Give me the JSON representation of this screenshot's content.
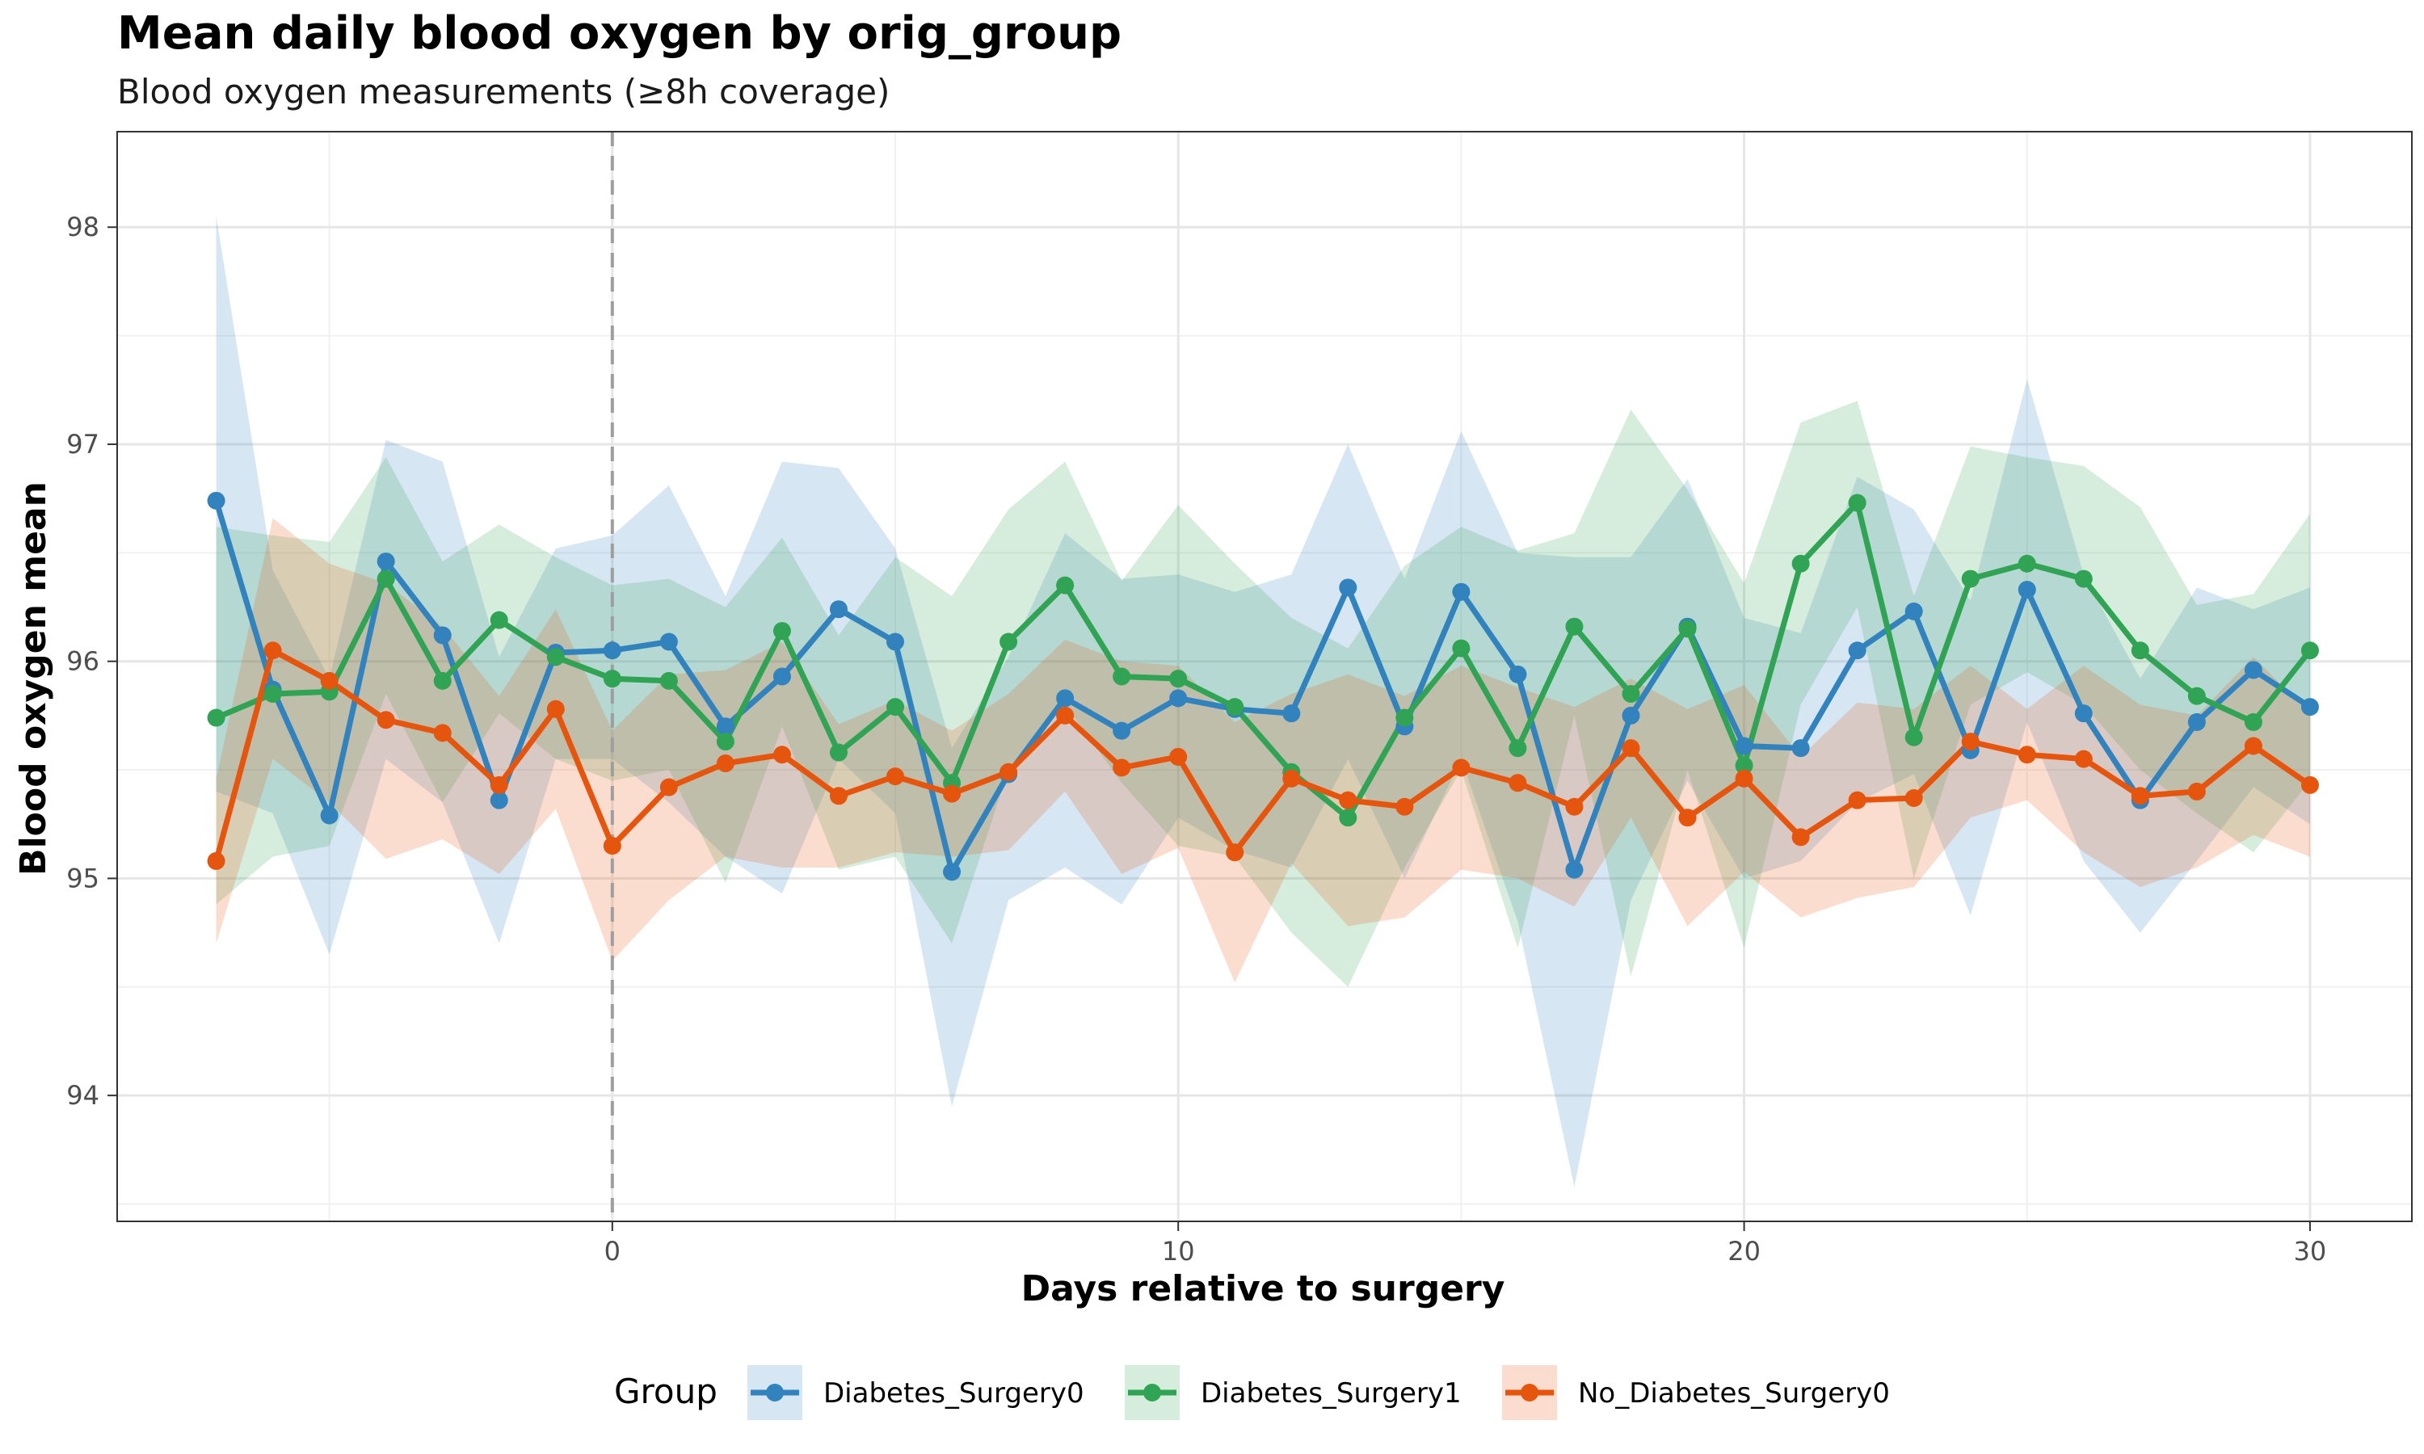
{
  "chart_data": {
    "type": "line",
    "title": "Mean daily blood oxygen by orig_group",
    "subtitle": "Blood oxygen measurements (≥8h coverage)",
    "xlabel": "Days relative to surgery",
    "ylabel": "Blood oxygen mean",
    "x_ticks": [
      0,
      10,
      20,
      30
    ],
    "y_ticks": [
      94,
      95,
      96,
      97,
      98
    ],
    "xlim": [
      -8.75,
      31.8
    ],
    "ylim": [
      93.42,
      98.44
    ],
    "grid": true,
    "reference_line_x": 0,
    "legend_title": "Group",
    "legend_position": "bottom",
    "x": [
      -7,
      -6,
      -5,
      -4,
      -3,
      -2,
      -1,
      0,
      1,
      2,
      3,
      4,
      5,
      6,
      7,
      8,
      9,
      10,
      11,
      12,
      13,
      14,
      15,
      16,
      17,
      18,
      19,
      20,
      21,
      22,
      23,
      24,
      25,
      26,
      27,
      28,
      29,
      30
    ],
    "series": [
      {
        "name": "Diabetes_Surgery0",
        "color": "#3182bd",
        "values": [
          96.74,
          95.87,
          95.29,
          96.46,
          96.12,
          95.36,
          96.04,
          96.05,
          96.09,
          95.7,
          95.93,
          96.24,
          96.09,
          95.03,
          95.48,
          95.83,
          95.68,
          95.83,
          95.78,
          95.76,
          96.34,
          95.7,
          96.32,
          95.94,
          95.04,
          95.75,
          96.16,
          95.61,
          95.6,
          96.05,
          96.23,
          95.59,
          96.33,
          95.76,
          95.36,
          95.72,
          95.96,
          95.79
        ],
        "lower": [
          95.4,
          95.3,
          94.65,
          95.55,
          95.35,
          94.7,
          95.55,
          95.55,
          95.35,
          95.1,
          94.93,
          95.55,
          95.3,
          93.95,
          94.9,
          95.05,
          94.88,
          95.28,
          95.13,
          95.05,
          95.55,
          95.0,
          95.55,
          94.8,
          93.58,
          94.9,
          95.45,
          95.0,
          95.08,
          95.35,
          95.48,
          94.83,
          95.72,
          95.08,
          94.75,
          95.08,
          95.42,
          95.25
        ],
        "upper": [
          98.05,
          96.42,
          95.92,
          97.02,
          96.92,
          96.02,
          96.52,
          96.58,
          96.81,
          96.3,
          96.92,
          96.89,
          96.52,
          95.6,
          96.02,
          96.59,
          96.38,
          96.4,
          96.32,
          96.4,
          97.0,
          96.38,
          97.06,
          96.5,
          96.48,
          96.48,
          96.84,
          96.2,
          96.13,
          96.85,
          96.7,
          96.28,
          97.3,
          96.4,
          95.92,
          96.34,
          96.24,
          96.34
        ]
      },
      {
        "name": "Diabetes_Surgery1",
        "color": "#31a354",
        "values": [
          95.74,
          95.85,
          95.86,
          96.38,
          95.91,
          96.19,
          96.02,
          95.92,
          95.91,
          95.63,
          96.14,
          95.58,
          95.79,
          95.44,
          96.09,
          96.35,
          95.93,
          95.92,
          95.79,
          95.49,
          95.28,
          95.74,
          96.06,
          95.6,
          96.16,
          95.85,
          96.15,
          95.52,
          96.45,
          96.73,
          95.65,
          96.38,
          96.45,
          96.38,
          96.05,
          95.84,
          95.72,
          96.05
        ],
        "lower": [
          94.88,
          95.1,
          95.15,
          95.85,
          95.35,
          95.76,
          95.55,
          95.45,
          95.5,
          94.98,
          95.7,
          95.04,
          95.1,
          94.7,
          95.5,
          95.8,
          95.44,
          95.15,
          95.1,
          94.75,
          94.5,
          95.05,
          95.5,
          94.68,
          95.75,
          94.55,
          95.5,
          94.68,
          95.8,
          96.25,
          95.0,
          95.8,
          95.95,
          95.8,
          95.5,
          95.3,
          95.12,
          95.45
        ],
        "upper": [
          96.62,
          96.58,
          96.55,
          96.94,
          96.46,
          96.63,
          96.48,
          96.35,
          96.38,
          96.25,
          96.57,
          96.12,
          96.48,
          96.3,
          96.7,
          96.92,
          96.37,
          96.72,
          96.45,
          96.2,
          96.06,
          96.44,
          96.62,
          96.51,
          96.59,
          97.16,
          96.79,
          96.36,
          97.1,
          97.2,
          96.3,
          96.99,
          96.94,
          96.9,
          96.71,
          96.26,
          96.31,
          96.68
        ]
      },
      {
        "name": "No_Diabetes_Surgery0",
        "color": "#e6550d",
        "values": [
          95.08,
          96.05,
          95.91,
          95.73,
          95.67,
          95.43,
          95.78,
          95.15,
          95.42,
          95.53,
          95.57,
          95.38,
          95.47,
          95.39,
          95.49,
          95.75,
          95.51,
          95.56,
          95.12,
          95.46,
          95.36,
          95.33,
          95.51,
          95.44,
          95.33,
          95.6,
          95.28,
          95.46,
          95.19,
          95.36,
          95.37,
          95.63,
          95.57,
          95.55,
          95.38,
          95.4,
          95.61,
          95.43
        ],
        "lower": [
          94.7,
          95.55,
          95.35,
          95.09,
          95.18,
          95.02,
          95.32,
          94.62,
          94.9,
          95.1,
          95.05,
          95.05,
          95.12,
          95.1,
          95.13,
          95.4,
          95.02,
          95.14,
          94.52,
          95.07,
          94.78,
          94.82,
          95.04,
          95.0,
          94.87,
          95.28,
          94.78,
          95.03,
          94.82,
          94.91,
          94.96,
          95.28,
          95.36,
          95.12,
          94.96,
          95.05,
          95.2,
          95.1
        ],
        "upper": [
          95.46,
          96.66,
          96.45,
          96.36,
          96.16,
          95.84,
          96.24,
          95.68,
          95.94,
          95.96,
          96.09,
          95.71,
          95.82,
          95.68,
          95.85,
          96.1,
          96.0,
          95.98,
          95.72,
          95.85,
          95.94,
          95.84,
          95.98,
          95.88,
          95.79,
          95.92,
          95.78,
          95.89,
          95.56,
          95.81,
          95.78,
          95.98,
          95.78,
          95.98,
          95.8,
          95.75,
          96.02,
          95.76
        ]
      }
    ]
  }
}
